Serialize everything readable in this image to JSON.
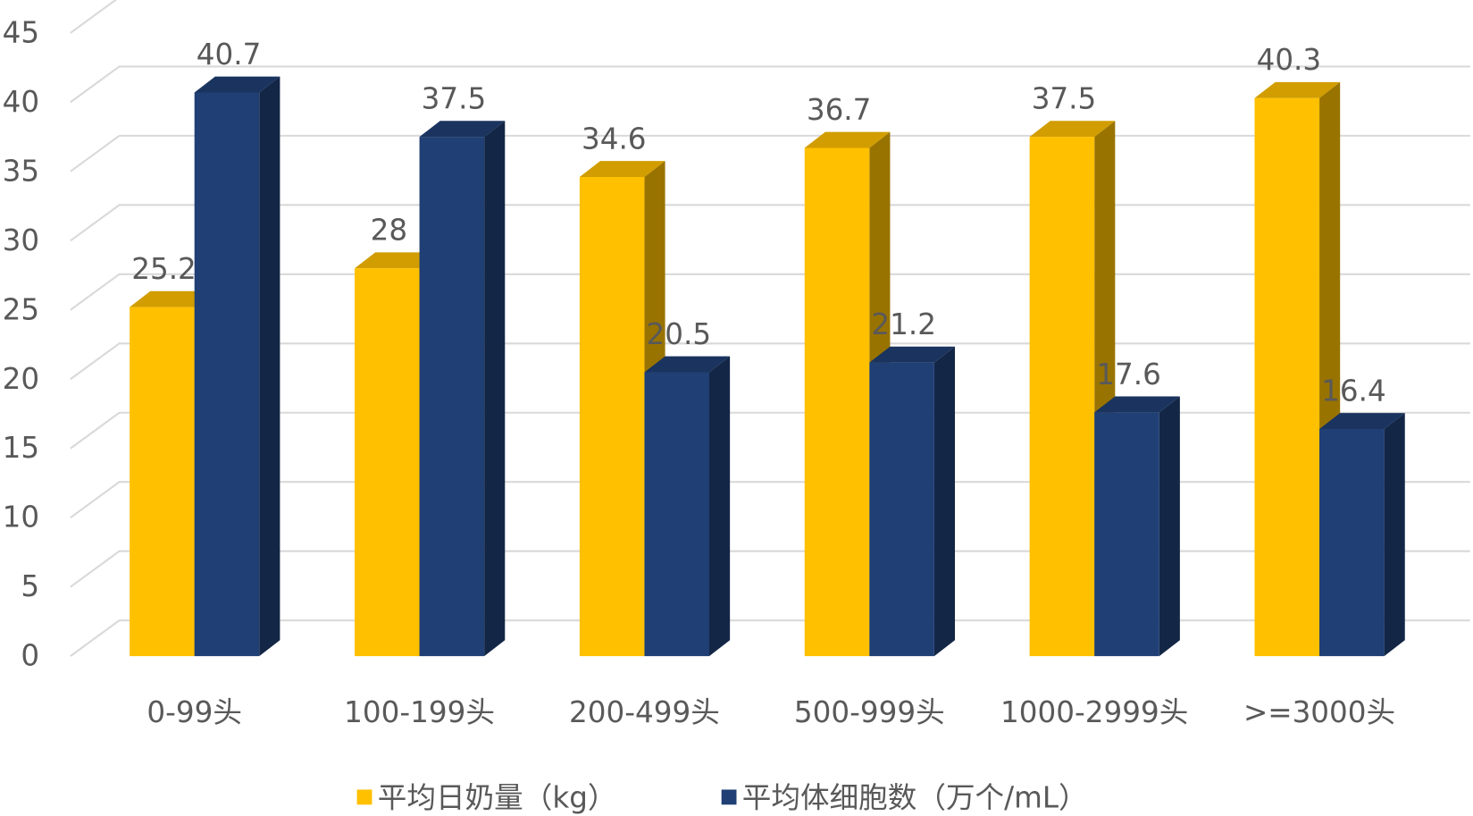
{
  "chart_data": {
    "type": "bar3d",
    "categories": [
      "0-99头",
      "100-199头",
      "200-499头",
      "500-999头",
      "1000-2999头",
      ">=3000头"
    ],
    "series": [
      {
        "name": "平均日奶量（kg）",
        "color": "#FFC000",
        "values": [
          25.2,
          28,
          34.6,
          36.7,
          37.5,
          40.3
        ]
      },
      {
        "name": "平均体细胞数（万个/mL）",
        "color": "#203F74",
        "values": [
          40.7,
          37.5,
          20.5,
          21.2,
          17.6,
          16.4
        ]
      }
    ],
    "ylim": [
      0,
      45
    ],
    "yticks": [
      0,
      5,
      10,
      15,
      20,
      25,
      30,
      35,
      40,
      45
    ],
    "grid": true,
    "legend": "bottom"
  }
}
